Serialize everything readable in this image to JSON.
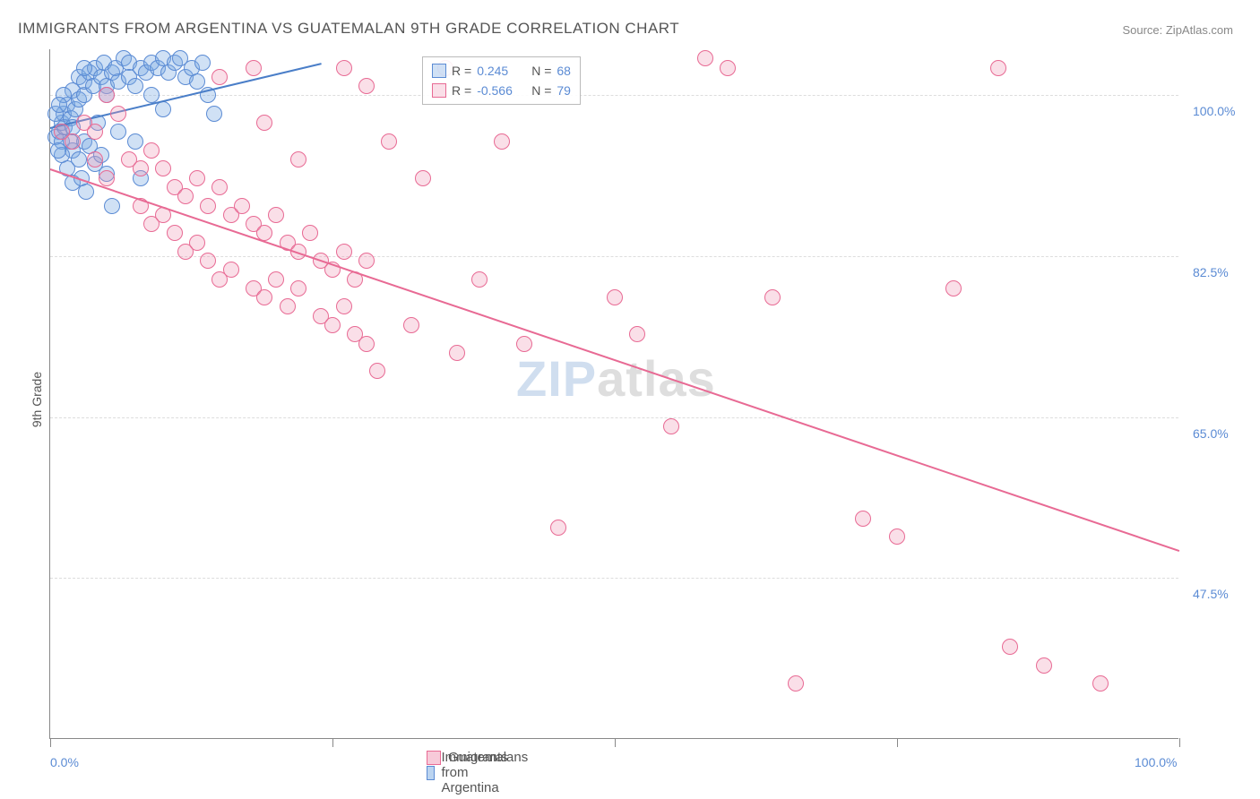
{
  "title": "IMMIGRANTS FROM ARGENTINA VS GUATEMALAN 9TH GRADE CORRELATION CHART",
  "source_prefix": "Source: ",
  "source_link": "ZipAtlas.com",
  "ylabel": "9th Grade",
  "watermark_a": "ZIP",
  "watermark_b": "atlas",
  "chart": {
    "type": "scatter",
    "background_color": "#ffffff",
    "grid_color": "#dddddd",
    "axis_color": "#888888",
    "tick_label_color": "#5b8bd4",
    "xlim": [
      0,
      100
    ],
    "ylim": [
      30,
      105
    ],
    "y_gridlines": [
      47.5,
      65.0,
      82.5,
      100.0
    ],
    "y_tick_labels": [
      "47.5%",
      "65.0%",
      "82.5%",
      "100.0%"
    ],
    "x_ticks_at": [
      0,
      25,
      50,
      75,
      100
    ],
    "x_tick_labels_left": "0.0%",
    "x_tick_labels_right": "100.0%",
    "marker_radius": 9,
    "marker_border_width": 1.5,
    "line_width": 2,
    "series": [
      {
        "name": "Immigrants from Argentina",
        "fill": "rgba(120,170,225,0.35)",
        "stroke": "#5b8bd4",
        "line_color": "#4a7ec8",
        "R_label": "R =",
        "R": "0.245",
        "N_label": "N =",
        "N": "68",
        "trend": {
          "x1": 0,
          "y1": 96.5,
          "x2": 24,
          "y2": 103.5
        },
        "points": [
          [
            0.5,
            95.5
          ],
          [
            0.8,
            96.0
          ],
          [
            1.0,
            97.0
          ],
          [
            1.2,
            98.0
          ],
          [
            1.5,
            99.0
          ],
          [
            1.0,
            95.0
          ],
          [
            1.3,
            96.5
          ],
          [
            1.8,
            97.5
          ],
          [
            2.0,
            100.5
          ],
          [
            2.2,
            98.5
          ],
          [
            2.5,
            99.5
          ],
          [
            2.5,
            102.0
          ],
          [
            3.0,
            100.0
          ],
          [
            3.0,
            101.5
          ],
          [
            3.5,
            102.5
          ],
          [
            3.8,
            101.0
          ],
          [
            4.0,
            103.0
          ],
          [
            4.5,
            102.0
          ],
          [
            4.8,
            103.5
          ],
          [
            5.0,
            101.0
          ],
          [
            5.0,
            100.0
          ],
          [
            5.5,
            102.5
          ],
          [
            5.8,
            103.0
          ],
          [
            6.0,
            101.5
          ],
          [
            6.5,
            104.0
          ],
          [
            7.0,
            103.5
          ],
          [
            7.0,
            102.0
          ],
          [
            7.5,
            101.0
          ],
          [
            8.0,
            103.0
          ],
          [
            8.5,
            102.5
          ],
          [
            9.0,
            103.5
          ],
          [
            9.5,
            103.0
          ],
          [
            10.0,
            104.0
          ],
          [
            10.5,
            102.5
          ],
          [
            11.0,
            103.5
          ],
          [
            11.5,
            104.0
          ],
          [
            12.0,
            102.0
          ],
          [
            12.5,
            103.0
          ],
          [
            13.0,
            101.5
          ],
          [
            2.0,
            94.0
          ],
          [
            2.5,
            93.0
          ],
          [
            3.0,
            95.0
          ],
          [
            3.5,
            94.5
          ],
          [
            4.0,
            92.5
          ],
          [
            4.5,
            93.5
          ],
          [
            5.0,
            91.5
          ],
          [
            1.5,
            92.0
          ],
          [
            2.0,
            90.5
          ],
          [
            2.8,
            91.0
          ],
          [
            3.2,
            89.5
          ],
          [
            1.0,
            93.5
          ],
          [
            1.8,
            95.0
          ],
          [
            0.7,
            94.0
          ],
          [
            14.0,
            100.0
          ],
          [
            14.5,
            98.0
          ],
          [
            6.0,
            96.0
          ],
          [
            7.5,
            95.0
          ],
          [
            8.0,
            91.0
          ],
          [
            9.0,
            100.0
          ],
          [
            10.0,
            98.5
          ],
          [
            13.5,
            103.5
          ],
          [
            3.0,
            103.0
          ],
          [
            1.2,
            100.0
          ],
          [
            2.0,
            96.5
          ],
          [
            4.2,
            97.0
          ],
          [
            0.5,
            98.0
          ],
          [
            0.8,
            99.0
          ],
          [
            5.5,
            88.0
          ]
        ]
      },
      {
        "name": "Guatemalans",
        "fill": "rgba(240,150,180,0.30)",
        "stroke": "#e86a94",
        "line_color": "#e86a94",
        "R_label": "R =",
        "R": "-0.566",
        "N_label": "N =",
        "N": "79",
        "trend": {
          "x1": 0,
          "y1": 92.0,
          "x2": 100,
          "y2": 50.5
        },
        "points": [
          [
            1,
            96
          ],
          [
            2,
            95
          ],
          [
            3,
            97
          ],
          [
            4,
            96
          ],
          [
            5,
            100
          ],
          [
            6,
            98
          ],
          [
            4,
            93
          ],
          [
            5,
            91
          ],
          [
            7,
            93
          ],
          [
            8,
            92
          ],
          [
            9,
            94
          ],
          [
            10,
            92
          ],
          [
            11,
            90
          ],
          [
            12,
            89
          ],
          [
            13,
            91
          ],
          [
            14,
            88
          ],
          [
            15,
            90
          ],
          [
            16,
            87
          ],
          [
            17,
            88
          ],
          [
            18,
            86
          ],
          [
            19,
            85
          ],
          [
            20,
            87
          ],
          [
            21,
            84
          ],
          [
            22,
            83
          ],
          [
            23,
            85
          ],
          [
            24,
            82
          ],
          [
            25,
            81
          ],
          [
            26,
            83
          ],
          [
            27,
            80
          ],
          [
            28,
            82
          ],
          [
            8,
            88
          ],
          [
            9,
            86
          ],
          [
            10,
            87
          ],
          [
            11,
            85
          ],
          [
            12,
            83
          ],
          [
            13,
            84
          ],
          [
            14,
            82
          ],
          [
            15,
            80
          ],
          [
            16,
            81
          ],
          [
            18,
            79
          ],
          [
            19,
            78
          ],
          [
            20,
            80
          ],
          [
            21,
            77
          ],
          [
            22,
            79
          ],
          [
            24,
            76
          ],
          [
            25,
            75
          ],
          [
            26,
            77
          ],
          [
            27,
            74
          ],
          [
            28,
            73
          ],
          [
            22,
            93
          ],
          [
            26,
            103
          ],
          [
            28,
            101
          ],
          [
            30,
            95
          ],
          [
            32,
            75
          ],
          [
            33,
            91
          ],
          [
            35,
            103
          ],
          [
            36,
            72
          ],
          [
            38,
            80
          ],
          [
            40,
            95
          ],
          [
            42,
            73
          ],
          [
            45,
            53
          ],
          [
            15,
            102
          ],
          [
            18,
            103
          ],
          [
            50,
            78
          ],
          [
            52,
            74
          ],
          [
            55,
            64
          ],
          [
            58,
            104
          ],
          [
            60,
            103
          ],
          [
            64,
            78
          ],
          [
            66,
            36
          ],
          [
            72,
            54
          ],
          [
            75,
            52
          ],
          [
            80,
            79
          ],
          [
            85,
            40
          ],
          [
            88,
            38
          ],
          [
            93,
            36
          ],
          [
            84,
            103
          ],
          [
            29,
            70
          ],
          [
            19,
            97
          ]
        ]
      }
    ]
  },
  "legend_bottom": [
    {
      "label": "Immigrants from Argentina",
      "fill": "rgba(120,170,225,0.5)",
      "stroke": "#5b8bd4"
    },
    {
      "label": "Guatemalans",
      "fill": "rgba(240,150,180,0.5)",
      "stroke": "#e86a94"
    }
  ]
}
